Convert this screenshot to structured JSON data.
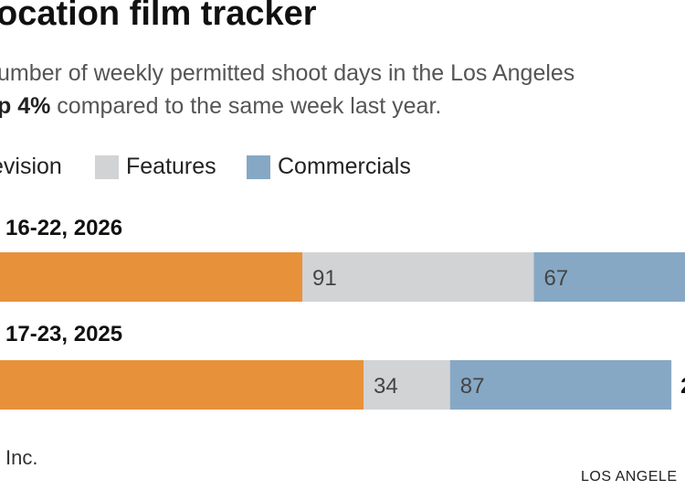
{
  "title": "ocation film tracker",
  "subtitle": {
    "line1": "umber of weekly permitted shoot days in the Los Angeles",
    "line2_bold": "p 4%",
    "line2_rest": " compared to the same week last year."
  },
  "legend": [
    {
      "label": "evision",
      "color": "#e8913b"
    },
    {
      "label": "Features",
      "color": "#d1d3d5"
    },
    {
      "label": "Commercials",
      "color": "#86a8c4"
    }
  ],
  "chart_data": {
    "type": "bar",
    "orientation": "horizontal",
    "stacked": true,
    "categories": [
      " 16-22, 2026",
      " 17-23, 2025"
    ],
    "series": [
      {
        "name": "evision",
        "color": "#e8913b",
        "values": [
          null,
          null
        ],
        "labels": [
          "",
          ""
        ]
      },
      {
        "name": "Features",
        "color": "#d1d3d5",
        "values": [
          91,
          34
        ],
        "labels": [
          "91",
          "34"
        ]
      },
      {
        "name": "Commercials",
        "color": "#86a8c4",
        "values": [
          67,
          87
        ],
        "labels": [
          "67",
          "87"
        ]
      }
    ],
    "totals": [
      "",
      "2"
    ]
  },
  "footer": {
    "source": "Inc.",
    "credit": "LOS ANGELE"
  }
}
